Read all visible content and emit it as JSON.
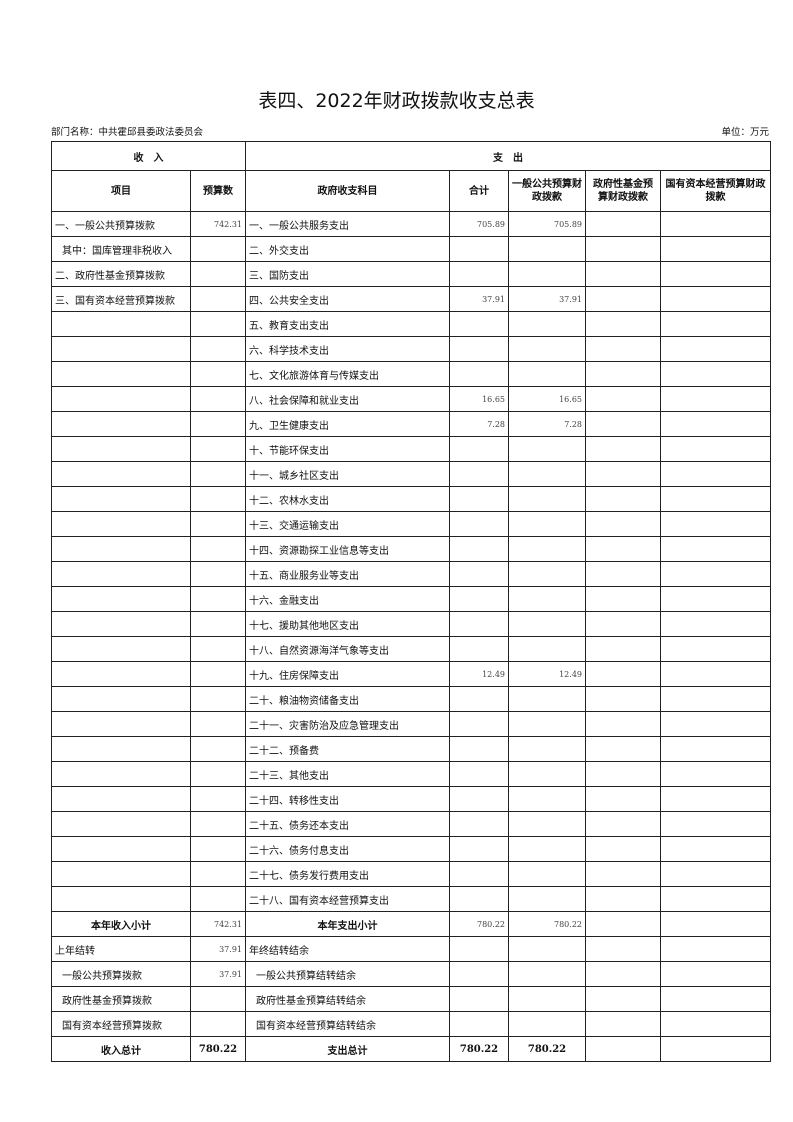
{
  "title": "表四、2022年财政拨款收支总表",
  "dept": "部门名称：中共霍邱县委政法委员会",
  "unit": "单位：万元",
  "headers": {
    "income": "收　入",
    "expense": "支　出",
    "item": "项目",
    "budget": "预算数",
    "subject": "政府收支科目",
    "total": "合计",
    "general": "一般公共预算财政拨款",
    "fund": "政府性基金预算财政拨款",
    "state": "国有资本经营预算财政拨款"
  },
  "rows": [
    [
      "一、一般公共预算拨款",
      "742.31",
      "一、一般公共服务支出",
      "705.89",
      "705.89"
    ],
    [
      "其中：国库管理非税收入",
      "",
      "二、外交支出",
      "",
      ""
    ],
    [
      "二、政府性基金预算拨款",
      "",
      "三、国防支出",
      "",
      ""
    ],
    [
      "三、国有资本经营预算拨款",
      "",
      "四、公共安全支出",
      "37.91",
      "37.91"
    ],
    [
      "",
      "",
      "五、教育支出支出",
      "",
      ""
    ],
    [
      "",
      "",
      "六、科学技术支出",
      "",
      ""
    ],
    [
      "",
      "",
      "七、文化旅游体育与传媒支出",
      "",
      ""
    ],
    [
      "",
      "",
      "八、社会保障和就业支出",
      "16.65",
      "16.65"
    ],
    [
      "",
      "",
      "九、卫生健康支出",
      "7.28",
      "7.28"
    ],
    [
      "",
      "",
      "十、节能环保支出",
      "",
      ""
    ],
    [
      "",
      "",
      "十一、城乡社区支出",
      "",
      ""
    ],
    [
      "",
      "",
      "十二、农林水支出",
      "",
      ""
    ],
    [
      "",
      "",
      "十三、交通运输支出",
      "",
      ""
    ],
    [
      "",
      "",
      "十四、资源勘探工业信息等支出",
      "",
      ""
    ],
    [
      "",
      "",
      "十五、商业服务业等支出",
      "",
      ""
    ],
    [
      "",
      "",
      "十六、金融支出",
      "",
      ""
    ],
    [
      "",
      "",
      "十七、援助其他地区支出",
      "",
      ""
    ],
    [
      "",
      "",
      "十八、自然资源海洋气象等支出",
      "",
      ""
    ],
    [
      "",
      "",
      "十九、住房保障支出",
      "12.49",
      "12.49"
    ],
    [
      "",
      "",
      "二十、粮油物资储备支出",
      "",
      ""
    ],
    [
      "",
      "",
      "二十一、灾害防治及应急管理支出",
      "",
      ""
    ],
    [
      "",
      "",
      "二十二、预备费",
      "",
      ""
    ],
    [
      "",
      "",
      "二十三、其他支出",
      "",
      ""
    ],
    [
      "",
      "",
      "二十四、转移性支出",
      "",
      ""
    ],
    [
      "",
      "",
      "二十五、债务还本支出",
      "",
      ""
    ],
    [
      "",
      "",
      "二十六、债务付息支出",
      "",
      ""
    ],
    [
      "",
      "",
      "二十七、债务发行费用支出",
      "",
      ""
    ],
    [
      "",
      "",
      "二十八、国有资本经营预算支出",
      "",
      ""
    ]
  ],
  "subtotal": {
    "income_label": "本年收入小计",
    "income": "742.31",
    "expense_label": "本年支出小计",
    "total": "780.22",
    "general": "780.22"
  },
  "carry": [
    [
      "上年结转",
      "37.91",
      "年终结转结余"
    ],
    [
      "一般公共预算拨款",
      "37.91",
      "一般公共预算结转结余"
    ],
    [
      "政府性基金预算拨款",
      "",
      "政府性基金预算结转结余"
    ],
    [
      "国有资本经营预算拨款",
      "",
      "国有资本经营预算结转结余"
    ]
  ],
  "grand": {
    "income_label": "收入总计",
    "income": "780.22",
    "expense_label": "支出总计",
    "total": "780.22",
    "general": "780.22"
  }
}
